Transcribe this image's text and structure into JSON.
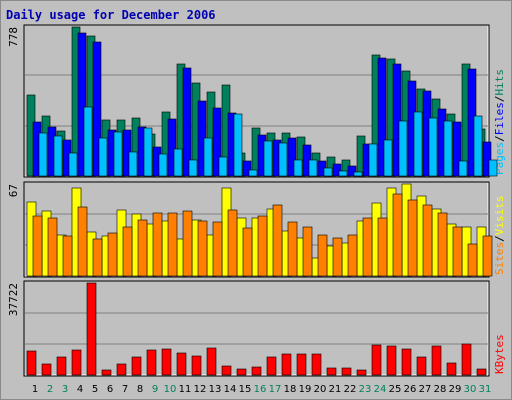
{
  "title": "Daily usage for December 2006",
  "colors": {
    "background": "#c0c0c0",
    "plot_background": "#c0c0c0",
    "grid": "#808080",
    "hits": "#00805c",
    "files": "#0000ff",
    "pages": "#00c0ff",
    "visits": "#ffff00",
    "sites": "#ff8000",
    "kbytes": "#ff0000",
    "weekday_label": "#000000",
    "weekend_label": "#00805c",
    "title": "#0000b0"
  },
  "chart_data": [
    {
      "type": "bar",
      "panel": "hits-files-pages",
      "ymax_label": "778",
      "ylim": [
        0,
        778
      ],
      "legend_right": [
        {
          "text": "Pages",
          "color": "#00c0ff"
        },
        {
          "text": "/",
          "color": "#000000"
        },
        {
          "text": "Files",
          "color": "#0000ff"
        },
        {
          "text": "/",
          "color": "#000000"
        },
        {
          "text": "Hits",
          "color": "#00805c"
        }
      ],
      "categories": [
        "1",
        "2",
        "3",
        "4",
        "5",
        "6",
        "7",
        "8",
        "9",
        "10",
        "11",
        "12",
        "13",
        "14",
        "15",
        "16",
        "17",
        "18",
        "19",
        "20",
        "21",
        "22",
        "23",
        "24",
        "25",
        "26",
        "27",
        "28",
        "29",
        "30",
        "31"
      ],
      "series": [
        {
          "name": "Hits",
          "values": [
            424,
            315,
            235,
            778,
            730,
            290,
            290,
            305,
            220,
            333,
            585,
            483,
            440,
            473,
            122,
            250,
            222,
            227,
            203,
            120,
            99,
            82,
            207,
            630,
            610,
            547,
            455,
            400,
            322,
            587,
            245
          ]
        },
        {
          "name": "Files",
          "values": [
            282,
            257,
            190,
            747,
            700,
            240,
            240,
            255,
            152,
            300,
            562,
            390,
            355,
            329,
            78,
            213,
            188,
            201,
            163,
            76,
            62,
            51,
            169,
            615,
            585,
            498,
            445,
            348,
            283,
            561,
            179
          ]
        },
        {
          "name": "Pages",
          "values": [
            224,
            210,
            122,
            360,
            199,
            231,
            123,
            250,
            115,
            143,
            82,
            200,
            98,
            322,
            32,
            181,
            171,
            82,
            86,
            43,
            24,
            23,
            169,
            190,
            288,
            333,
            304,
            287,
            80,
            311,
            82
          ]
        }
      ]
    },
    {
      "type": "bar",
      "panel": "visits-sites",
      "ymax_label": "67",
      "ylim": [
        0,
        67
      ],
      "legend_right": [
        {
          "text": "Sites",
          "color": "#ff8000"
        },
        {
          "text": "/",
          "color": "#000000"
        },
        {
          "text": "Visits",
          "color": "#ffff00"
        }
      ],
      "categories": [
        "1",
        "2",
        "3",
        "4",
        "5",
        "6",
        "7",
        "8",
        "9",
        "10",
        "11",
        "12",
        "13",
        "14",
        "15",
        "16",
        "17",
        "18",
        "19",
        "20",
        "21",
        "22",
        "23",
        "24",
        "25",
        "26",
        "27",
        "28",
        "29",
        "30",
        "31"
      ],
      "series": [
        {
          "name": "Visits",
          "values": [
            54,
            47,
            30,
            64,
            32,
            29,
            48,
            45,
            38,
            40,
            27,
            41,
            30,
            64,
            42,
            42,
            49,
            33,
            28,
            13,
            22,
            24,
            40,
            53,
            64,
            67,
            58,
            49,
            38,
            36,
            36
          ]
        },
        {
          "name": "Sites",
          "values": [
            44,
            42,
            29,
            50,
            27,
            31,
            36,
            41,
            46,
            46,
            47,
            40,
            39,
            48,
            35,
            44,
            52,
            39,
            36,
            30,
            28,
            30,
            42,
            42,
            60,
            55,
            52,
            46,
            36,
            23,
            29
          ]
        }
      ]
    },
    {
      "type": "bar",
      "panel": "kbytes",
      "ymax_label": "37722",
      "ylim": [
        0,
        37722
      ],
      "legend_right": [
        {
          "text": "KBytes",
          "color": "#ff0000"
        }
      ],
      "categories": [
        "1",
        "2",
        "3",
        "4",
        "5",
        "6",
        "7",
        "8",
        "9",
        "10",
        "11",
        "12",
        "13",
        "14",
        "15",
        "16",
        "17",
        "18",
        "19",
        "20",
        "21",
        "22",
        "23",
        "24",
        "25",
        "26",
        "27",
        "28",
        "29",
        "30",
        "31"
      ],
      "series": [
        {
          "name": "KBytes",
          "values": [
            10000,
            4450,
            7450,
            10200,
            37722,
            2050,
            4450,
            7450,
            10300,
            10700,
            8900,
            7600,
            10900,
            3600,
            2400,
            3100,
            7350,
            8650,
            8700,
            8700,
            3000,
            3000,
            2250,
            12250,
            11900,
            10850,
            7300,
            11750,
            4900,
            12550,
            2600
          ]
        }
      ]
    }
  ],
  "x_labels": [
    {
      "label": "1",
      "weekend": false
    },
    {
      "label": "2",
      "weekend": true
    },
    {
      "label": "3",
      "weekend": true
    },
    {
      "label": "4",
      "weekend": false
    },
    {
      "label": "5",
      "weekend": false
    },
    {
      "label": "6",
      "weekend": false
    },
    {
      "label": "7",
      "weekend": false
    },
    {
      "label": "8",
      "weekend": false
    },
    {
      "label": "9",
      "weekend": true
    },
    {
      "label": "10",
      "weekend": true
    },
    {
      "label": "11",
      "weekend": false
    },
    {
      "label": "12",
      "weekend": false
    },
    {
      "label": "13",
      "weekend": false
    },
    {
      "label": "14",
      "weekend": false
    },
    {
      "label": "15",
      "weekend": false
    },
    {
      "label": "16",
      "weekend": true
    },
    {
      "label": "17",
      "weekend": true
    },
    {
      "label": "18",
      "weekend": false
    },
    {
      "label": "19",
      "weekend": false
    },
    {
      "label": "20",
      "weekend": false
    },
    {
      "label": "21",
      "weekend": false
    },
    {
      "label": "22",
      "weekend": false
    },
    {
      "label": "23",
      "weekend": true
    },
    {
      "label": "24",
      "weekend": true
    },
    {
      "label": "25",
      "weekend": false
    },
    {
      "label": "26",
      "weekend": false
    },
    {
      "label": "27",
      "weekend": false
    },
    {
      "label": "28",
      "weekend": false
    },
    {
      "label": "29",
      "weekend": false
    },
    {
      "label": "30",
      "weekend": true
    },
    {
      "label": "31",
      "weekend": true
    }
  ]
}
